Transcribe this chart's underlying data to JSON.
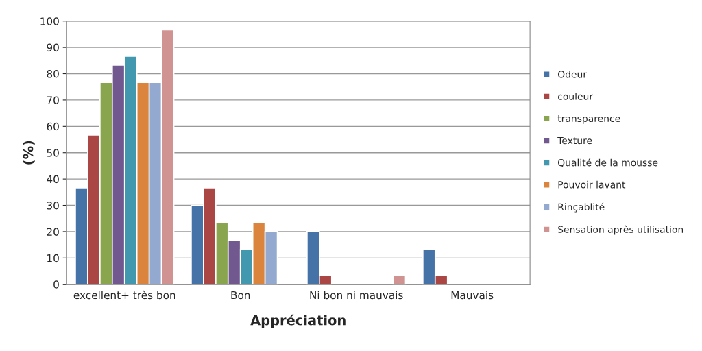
{
  "chart_data": {
    "type": "bar",
    "xlabel": "Appréciation",
    "ylabel": "(%)",
    "categories": [
      "excellent+ très bon",
      "Bon",
      "Ni bon ni mauvais",
      "Mauvais"
    ],
    "series": [
      {
        "name": "Odeur",
        "color": "#4572a7",
        "values": [
          36.7,
          30,
          20,
          13.3
        ]
      },
      {
        "name": "couleur",
        "color": "#aa4643",
        "values": [
          56.7,
          36.7,
          3.3,
          3.3
        ]
      },
      {
        "name": "transparence",
        "color": "#89a54e",
        "values": [
          76.7,
          23.3,
          null,
          null
        ]
      },
      {
        "name": "Texture",
        "color": "#71588f",
        "values": [
          83.3,
          16.7,
          null,
          null
        ]
      },
      {
        "name": "Qualité de la mousse",
        "color": "#4198af",
        "values": [
          86.7,
          13.3,
          null,
          null
        ]
      },
      {
        "name": "Pouvoir lavant",
        "color": "#db843d",
        "values": [
          76.7,
          23.3,
          null,
          null
        ]
      },
      {
        "name": "Rinçablité",
        "color": "#93a9cf",
        "values": [
          76.7,
          20,
          null,
          null
        ]
      },
      {
        "name": "Sensation après utilisation",
        "color": "#d19392",
        "values": [
          96.7,
          null,
          3.3,
          null
        ]
      }
    ],
    "ylim": [
      0,
      100
    ],
    "yticks": [
      0,
      10,
      20,
      30,
      40,
      50,
      60,
      70,
      80,
      90,
      100
    ],
    "grid": "y",
    "legend": "right"
  }
}
